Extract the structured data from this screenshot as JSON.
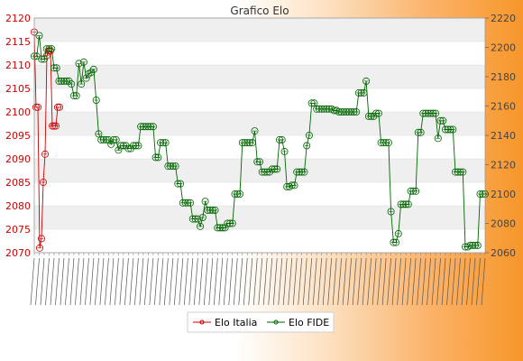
{
  "chart_data": {
    "type": "line",
    "title": "Grafico Elo",
    "xlabel": "",
    "ylabel": "",
    "grid": true,
    "legend_position": "bottom",
    "y_left": {
      "min": 2070,
      "max": 2120,
      "ticks": [
        2070,
        2075,
        2080,
        2085,
        2090,
        2095,
        2100,
        2105,
        2110,
        2115,
        2120
      ],
      "color": "#cc0000"
    },
    "y_right": {
      "min": 2060,
      "max": 2220,
      "ticks": [
        2060,
        2080,
        2100,
        2120,
        2140,
        2160,
        2180,
        2200,
        2220
      ],
      "color": "#444444"
    },
    "series": [
      {
        "name": "Elo Italia",
        "color": "#cc0000",
        "axis": "left",
        "values": [
          2117,
          2101,
          2101,
          2071,
          2073,
          2085,
          2091,
          2112,
          2113,
          2113,
          2097,
          2097,
          2097,
          2101,
          2101
        ]
      },
      {
        "name": "Elo FIDE",
        "color": "#006600",
        "axis": "right",
        "values": [
          2194,
          2194,
          2208,
          2192,
          2192,
          2199,
          2199,
          2199,
          2186,
          2186,
          2177,
          2177,
          2177,
          2177,
          2177,
          2175,
          2167,
          2167,
          2189,
          2175,
          2190,
          2179,
          2182,
          2183,
          2185,
          2164,
          2141,
          2137,
          2137,
          2137,
          2137,
          2134,
          2137,
          2137,
          2130,
          2133,
          2133,
          2133,
          2131,
          2131,
          2133,
          2133,
          2133,
          2146,
          2146,
          2146,
          2146,
          2146,
          2146,
          2125,
          2125,
          2135,
          2135,
          2135,
          2119,
          2119,
          2119,
          2119,
          2107,
          2107,
          2094,
          2094,
          2094,
          2094,
          2083,
          2083,
          2083,
          2078,
          2084,
          2095,
          2089,
          2089,
          2089,
          2089,
          2077,
          2077,
          2077,
          2077,
          2080,
          2080,
          2080,
          2100,
          2100,
          2100,
          2135,
          2135,
          2135,
          2135,
          2135,
          2143,
          2122,
          2122,
          2115,
          2115,
          2115,
          2115,
          2117,
          2117,
          2117,
          2137,
          2137,
          2129,
          2105,
          2105,
          2106,
          2106,
          2115,
          2115,
          2115,
          2115,
          2133,
          2140,
          2162,
          2162,
          2158,
          2158,
          2158,
          2158,
          2158,
          2158,
          2158,
          2157,
          2157,
          2156,
          2156,
          2156,
          2156,
          2156,
          2156,
          2156,
          2156,
          2169,
          2169,
          2169,
          2177,
          2153,
          2153,
          2153,
          2155,
          2155,
          2135,
          2135,
          2135,
          2135,
          2088,
          2067,
          2067,
          2073,
          2093,
          2093,
          2093,
          2093,
          2102,
          2102,
          2102,
          2142,
          2142,
          2155,
          2155,
          2155,
          2155,
          2155,
          2155,
          2138,
          2150,
          2150,
          2144,
          2144,
          2144,
          2144,
          2115,
          2115,
          2115,
          2115,
          2064,
          2064,
          2065,
          2065,
          2065,
          2065,
          2100,
          2100,
          2100
        ]
      }
    ],
    "x_tick_note": "x tick labels are dense and illegible in the image; rendered as decorative strokes"
  }
}
